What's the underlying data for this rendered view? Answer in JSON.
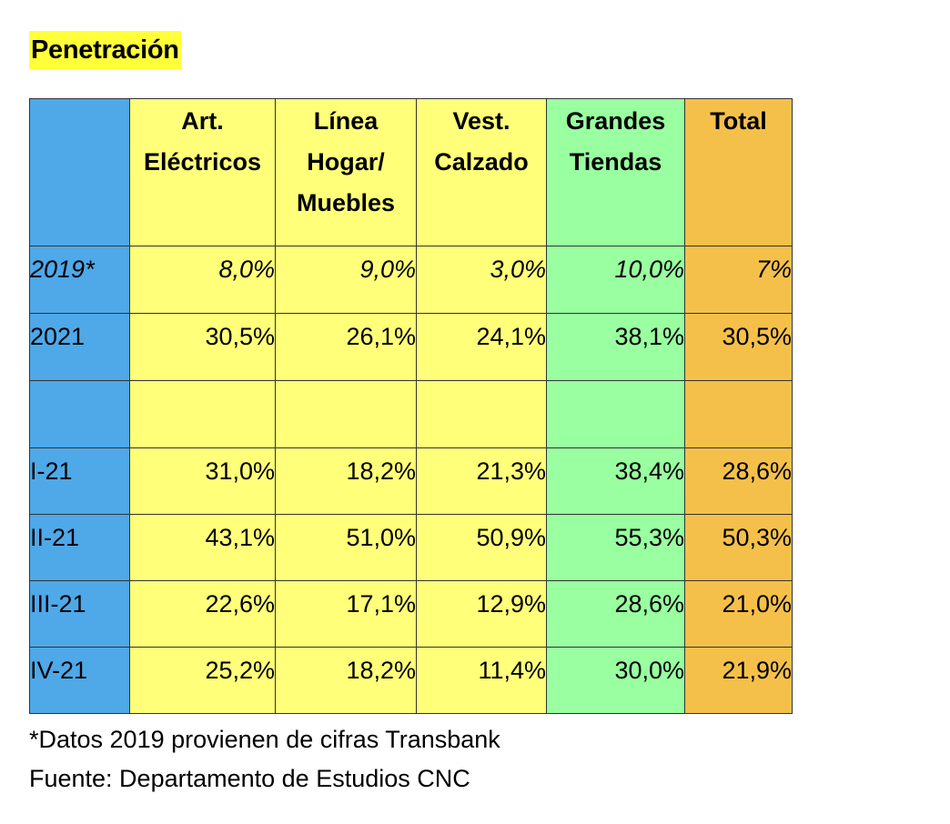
{
  "title": "Penetración",
  "colors": {
    "title_highlight": "#FFFF3A",
    "label_column": "#4FA8E8",
    "yellow_columns": "#FFFF7A",
    "green_column": "#99FFA0",
    "total_column": "#F5C04A",
    "border": "#333333"
  },
  "table": {
    "header_corner": "",
    "columns": [
      {
        "label": "Art. Eléctricos",
        "color": "#FFFF7A"
      },
      {
        "label": "Línea Hogar/ Muebles",
        "color": "#FFFF7A"
      },
      {
        "label": "Vest. Calzado",
        "color": "#FFFF7A"
      },
      {
        "label": "Grandes Tiendas",
        "color": "#99FFA0"
      },
      {
        "label": "Total",
        "color": "#F5C04A"
      }
    ],
    "rows": [
      {
        "label": "2019*",
        "italic": true,
        "values": [
          "8,0%",
          "9,0%",
          "3,0%",
          "10,0%",
          "7%"
        ]
      },
      {
        "label": "2021",
        "italic": false,
        "values": [
          "30,5%",
          "26,1%",
          "24,1%",
          "38,1%",
          "30,5%"
        ]
      },
      {
        "label": "",
        "italic": false,
        "values": [
          "",
          "",
          "",
          "",
          ""
        ]
      },
      {
        "label": "I-21",
        "italic": false,
        "values": [
          "31,0%",
          "18,2%",
          "21,3%",
          "38,4%",
          "28,6%"
        ]
      },
      {
        "label": "II-21",
        "italic": false,
        "values": [
          "43,1%",
          "51,0%",
          "50,9%",
          "55,3%",
          "50,3%"
        ]
      },
      {
        "label": "III-21",
        "italic": false,
        "values": [
          "22,6%",
          "17,1%",
          "12,9%",
          "28,6%",
          "21,0%"
        ]
      },
      {
        "label": "IV-21",
        "italic": false,
        "values": [
          "25,2%",
          "18,2%",
          "11,4%",
          "30,0%",
          "21,9%"
        ]
      }
    ]
  },
  "notes": {
    "footnote": "*Datos 2019 provienen de cifras Transbank",
    "source": "Fuente: Departamento de Estudios CNC"
  }
}
